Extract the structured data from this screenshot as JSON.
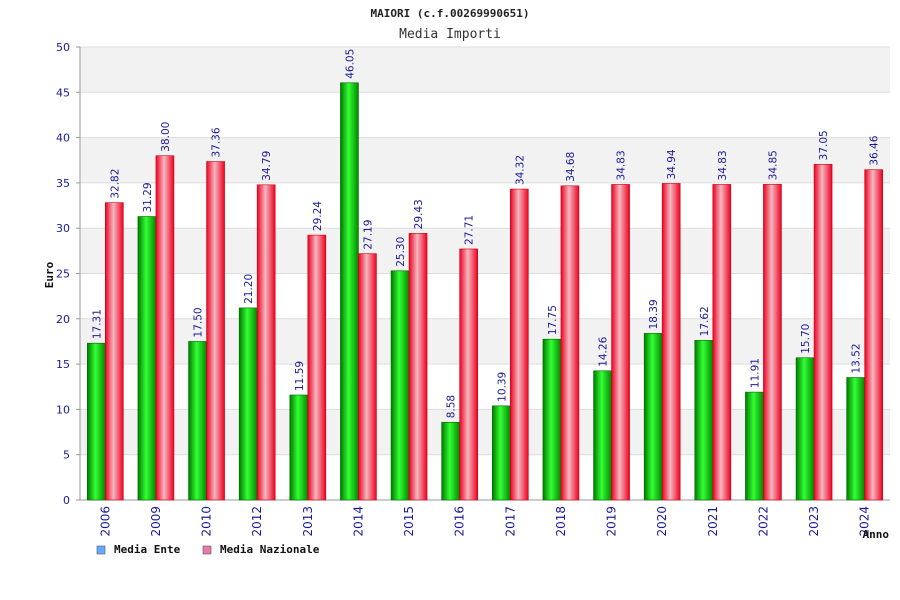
{
  "chart_data": {
    "type": "bar",
    "title": "MAIORI (c.f.00269990651)",
    "subtitle": "Media Importi",
    "xlabel": "Anno",
    "ylabel": "Euro",
    "ylim": [
      0,
      50
    ],
    "yticks": [
      0,
      5,
      10,
      15,
      20,
      25,
      30,
      35,
      40,
      45,
      50
    ],
    "grid": true,
    "legend_position": "bottom-left",
    "categories": [
      "2006",
      "2009",
      "2010",
      "2012",
      "2013",
      "2014",
      "2015",
      "2016",
      "2017",
      "2018",
      "2019",
      "2020",
      "2021",
      "2022",
      "2023",
      "2024"
    ],
    "series": [
      {
        "name": "Media Ente",
        "color": "#00b800",
        "legend_color": "#66aaff",
        "values": [
          17.31,
          31.29,
          17.5,
          21.2,
          11.59,
          46.05,
          25.3,
          8.58,
          10.39,
          17.75,
          14.26,
          18.39,
          17.62,
          11.91,
          15.7,
          13.52
        ],
        "labels": [
          "17.31",
          "31.29",
          "17.50",
          "21.20",
          "11.59",
          "46.05",
          "25.30",
          "8.58",
          "10.39",
          "17.75",
          "14.26",
          "18.39",
          "17.62",
          "11.91",
          "15.70",
          "13.52"
        ]
      },
      {
        "name": "Media Nazionale",
        "color": "#ee2233",
        "legend_color": "#ee77aa",
        "values": [
          32.82,
          38.0,
          37.36,
          34.79,
          29.24,
          27.19,
          29.43,
          27.71,
          34.32,
          34.68,
          34.83,
          34.94,
          34.83,
          34.85,
          37.05,
          36.46
        ],
        "labels": [
          "32.82",
          "38.00",
          "37.36",
          "34.79",
          "29.24",
          "27.19",
          "29.43",
          "27.71",
          "34.32",
          "34.68",
          "34.83",
          "34.94",
          "34.83",
          "34.85",
          "37.05",
          "36.46"
        ]
      }
    ]
  }
}
